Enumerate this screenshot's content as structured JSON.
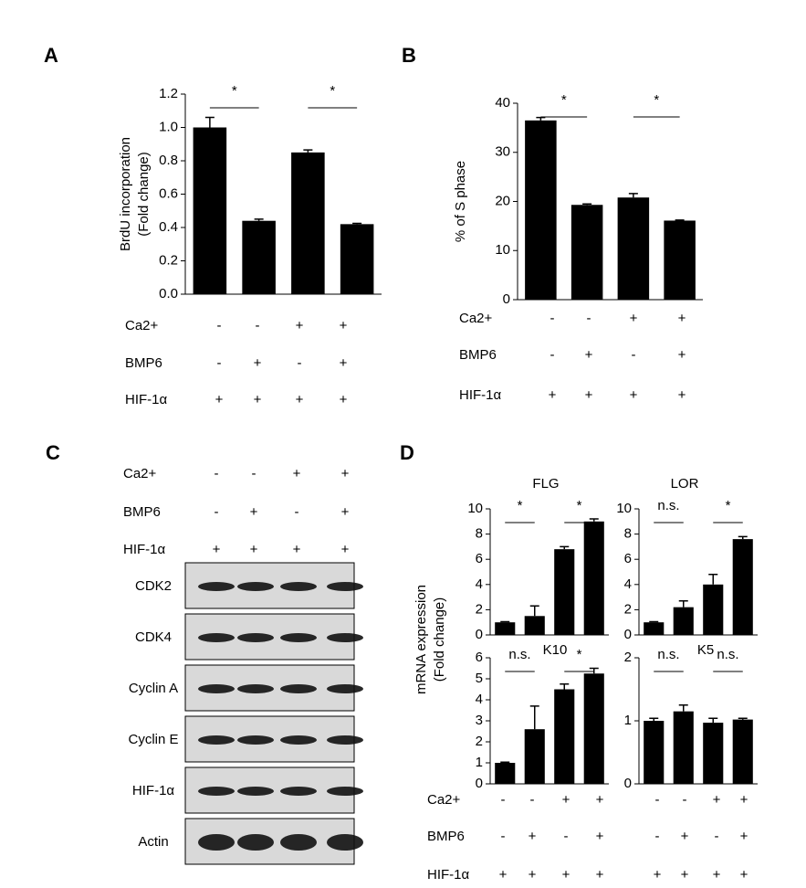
{
  "chart_data": [
    {
      "type": "bar",
      "panel": "A",
      "ylabel": [
        "BrdU incorporation",
        "(Fold change)"
      ],
      "categories": [
        null,
        null,
        null,
        null
      ],
      "values": [
        1.0,
        0.44,
        0.85,
        0.42
      ],
      "errors": [
        0.06,
        0.01,
        0.015,
        0.005
      ],
      "color": "#000000",
      "ylim": [
        0,
        1.2
      ],
      "yticks": [
        {
          "value": 0,
          "label": "0.0"
        },
        {
          "value": 0.2,
          "label": "0.2"
        },
        {
          "value": 0.4,
          "label": "0.4"
        },
        {
          "value": 0.6,
          "label": "0.6"
        },
        {
          "value": 0.8,
          "label": "0.8"
        },
        {
          "value": 1.0,
          "label": "1.0"
        },
        {
          "value": 1.2,
          "label": "1.2"
        }
      ],
      "annotations": [
        "*",
        "*"
      ]
    },
    {
      "type": "bar",
      "panel": "B",
      "ylabel": [
        "% of S phase"
      ],
      "categories": [
        null,
        null,
        null,
        null
      ],
      "values": [
        36.5,
        19.3,
        20.8,
        16.1
      ],
      "errors": [
        0.6,
        0.2,
        0.8,
        0.1
      ],
      "color": "#000000",
      "ylim": [
        0,
        40
      ],
      "yticks": [
        0,
        10,
        20,
        30,
        40
      ],
      "annotations": [
        "*",
        "*"
      ]
    },
    {
      "type": "bar",
      "title": "FLG",
      "categories": [
        null,
        null,
        null,
        null
      ],
      "values": [
        1.0,
        1.5,
        6.8,
        9.0
      ],
      "errors": [
        0.05,
        0.8,
        0.2,
        0.2
      ],
      "color": "#000000",
      "ylim": [
        0,
        10
      ],
      "yticks": [
        0,
        2,
        4,
        6,
        8,
        10
      ],
      "annotations": [
        "*",
        "*"
      ]
    },
    {
      "type": "bar",
      "title": "LOR",
      "categories": [
        null,
        null,
        null,
        null
      ],
      "values": [
        1.0,
        2.2,
        4.0,
        7.6
      ],
      "errors": [
        0.05,
        0.5,
        0.8,
        0.2
      ],
      "color": "#000000",
      "ylim": [
        0,
        10
      ],
      "yticks": [
        0,
        2,
        4,
        6,
        8,
        10
      ],
      "annotations": [
        "n.s.",
        "*"
      ]
    },
    {
      "type": "bar",
      "title": "K10",
      "categories": [
        null,
        null,
        null,
        null
      ],
      "values": [
        1.0,
        2.6,
        4.5,
        5.25
      ],
      "errors": [
        0.03,
        1.1,
        0.25,
        0.25
      ],
      "color": "#000000",
      "ylim": [
        0,
        6
      ],
      "yticks": [
        0,
        1,
        2,
        3,
        4,
        5,
        6
      ],
      "annotations": [
        "n.s.",
        "*"
      ]
    },
    {
      "type": "bar",
      "title": "K5",
      "categories": [
        null,
        null,
        null,
        null
      ],
      "values": [
        1.0,
        1.15,
        0.97,
        1.02
      ],
      "errors": [
        0.04,
        0.1,
        0.07,
        0.02
      ],
      "color": "#000000",
      "ylim": [
        0,
        2
      ],
      "yticks": [
        0,
        1,
        2
      ],
      "annotations": [
        "n.s.",
        "n.s."
      ]
    }
  ],
  "panel_c": "C",
  "panel_d": "D",
  "d_ylabel": [
    "mRNA expression",
    "(Fold change)"
  ],
  "conditions": {
    "names": [
      "Ca2+",
      "BMP6",
      "HIF-1α"
    ],
    "signs": [
      [
        "-",
        "-",
        "+",
        "+"
      ],
      [
        "-",
        "+",
        "-",
        "+"
      ],
      [
        "+",
        "+",
        "+",
        "+"
      ]
    ]
  },
  "blot": {
    "bands": [
      "CDK2",
      "CDK4",
      "Cyclin A",
      "Cyclin E",
      "HIF-1α",
      "Actin"
    ]
  }
}
